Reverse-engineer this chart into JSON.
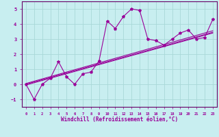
{
  "xlabel": "Windchill (Refroidissement éolien,°C)",
  "xlim": [
    -0.5,
    23.5
  ],
  "ylim": [
    -1.5,
    5.5
  ],
  "xticks": [
    0,
    1,
    2,
    3,
    4,
    5,
    6,
    7,
    8,
    9,
    10,
    11,
    12,
    13,
    14,
    15,
    16,
    17,
    18,
    19,
    20,
    21,
    22,
    23
  ],
  "yticks": [
    -1,
    0,
    1,
    2,
    3,
    4,
    5
  ],
  "bg_color": "#c8eef0",
  "line_color": "#990099",
  "scatter_data": [
    [
      0,
      0.0
    ],
    [
      1,
      -1.0
    ],
    [
      2,
      0.0
    ],
    [
      3,
      0.4
    ],
    [
      4,
      1.5
    ],
    [
      5,
      0.5
    ],
    [
      6,
      0.0
    ],
    [
      7,
      0.7
    ],
    [
      8,
      0.8
    ],
    [
      9,
      1.55
    ],
    [
      10,
      4.2
    ],
    [
      11,
      3.7
    ],
    [
      12,
      4.5
    ],
    [
      13,
      5.0
    ],
    [
      14,
      4.9
    ],
    [
      15,
      3.0
    ],
    [
      16,
      2.9
    ],
    [
      17,
      2.6
    ],
    [
      18,
      3.0
    ],
    [
      19,
      3.4
    ],
    [
      20,
      3.6
    ],
    [
      21,
      3.0
    ],
    [
      22,
      3.1
    ],
    [
      23,
      4.3
    ]
  ],
  "reg_lines": [
    [
      [
        0,
        0.0
      ],
      [
        23,
        3.45
      ]
    ],
    [
      [
        0,
        0.05
      ],
      [
        23,
        3.55
      ]
    ],
    [
      [
        0,
        -0.05
      ],
      [
        23,
        3.4
      ]
    ]
  ],
  "grid_color": "#a8d8d8",
  "spine_color": "#660066"
}
